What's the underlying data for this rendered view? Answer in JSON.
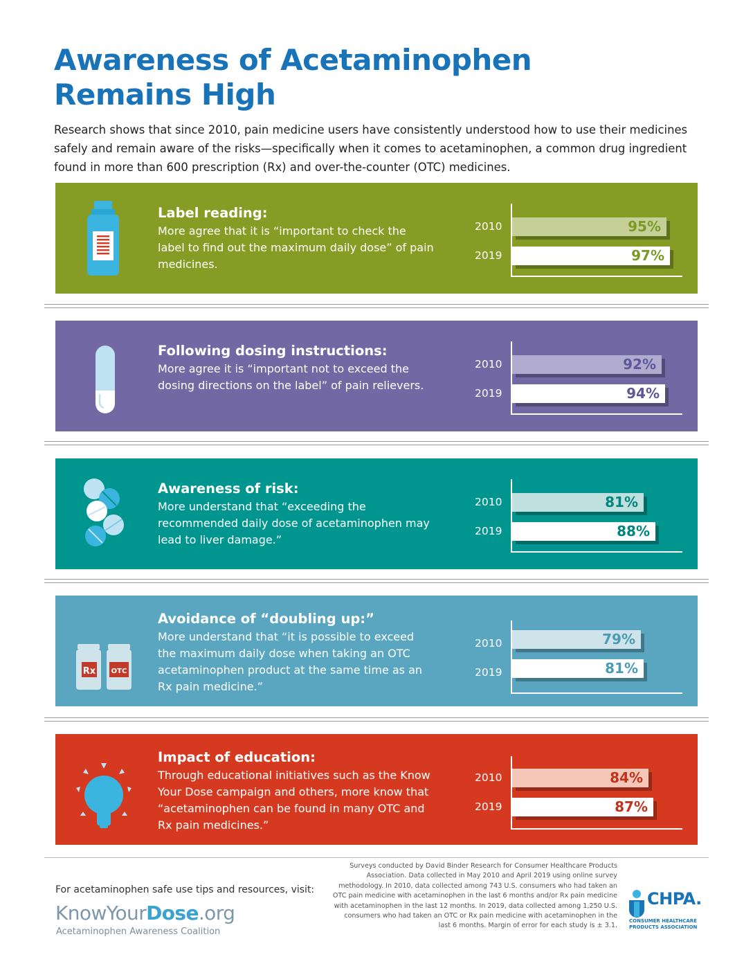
{
  "title_line1": "Awareness of Acetaminophen",
  "title_line2": "Remains High",
  "intro": "Research shows that since 2010, pain medicine users have consistently understood how to use their medicines safely and remain aware of the risks—specifically when it comes to acetaminophen, a common drug ingredient found in more than 600 prescription (Rx) and over-the-counter (OTC) medicines.",
  "colors": {
    "title": "#1873b8",
    "panel_label": "#879c25",
    "panel_dosing": "#7269a4",
    "panel_risk": "#00968f",
    "panel_doubling": "#5aa6c0",
    "panel_education": "#d53a21"
  },
  "panels": [
    {
      "icon": "medicine-bottle-icon",
      "title": "Label reading:",
      "desc": "More agree that it is “important to check the label to find out the maximum daily dose” of pain medicines.",
      "bg": "#879c25",
      "light": "#c6cf98",
      "val_color": "#7a9a26"
    },
    {
      "icon": "capsule-icon",
      "title": "Following dosing instructions:",
      "desc": "More agree it is “important not to exceed the dosing directions on the label” of pain relievers.",
      "bg": "#7269a4",
      "light": "#b1abd0",
      "val_color": "#5e5799"
    },
    {
      "icon": "tablets-icon",
      "title": "Awareness of risk:",
      "desc": "More understand that “exceeding the recommended daily dose of acetaminophen may lead to liver damage.”",
      "bg": "#00968f",
      "light": "#bfe0de",
      "val_color": "#00857f"
    },
    {
      "icon": "rx-otc-bottles-icon",
      "title": "Avoidance of “doubling up:”",
      "desc": "More understand that “it is possible to exceed the maximum daily dose when taking an OTC acetaminophen product at the same time as an Rx pain medicine.”",
      "bg": "#5aa6c0",
      "light": "#cfe3ea",
      "val_color": "#4a9bb5",
      "rx_label": "Rx",
      "otc_label": "OTC"
    },
    {
      "icon": "light-bulb-icon",
      "title": "Impact of education:",
      "desc": "Through educational initiatives such as the Know Your Dose campaign and others, more know that “acetaminophen can be found in many OTC and Rx pain medicines.”",
      "bg": "#d53a21",
      "light": "#f4c7b8",
      "val_color": "#c0331d"
    }
  ],
  "chart_data": [
    {
      "type": "bar",
      "categories": [
        "2010",
        "2019"
      ],
      "values": [
        95,
        97
      ],
      "value_labels": [
        "95%",
        "97%"
      ],
      "ylim": [
        0,
        100
      ]
    },
    {
      "type": "bar",
      "categories": [
        "2010",
        "2019"
      ],
      "values": [
        92,
        94
      ],
      "value_labels": [
        "92%",
        "94%"
      ],
      "ylim": [
        0,
        100
      ]
    },
    {
      "type": "bar",
      "categories": [
        "2010",
        "2019"
      ],
      "values": [
        81,
        88
      ],
      "value_labels": [
        "81%",
        "88%"
      ],
      "ylim": [
        0,
        100
      ]
    },
    {
      "type": "bar",
      "categories": [
        "2010",
        "2019"
      ],
      "values": [
        79,
        81
      ],
      "value_labels": [
        "79%",
        "81%"
      ],
      "ylim": [
        0,
        100
      ]
    },
    {
      "type": "bar",
      "categories": [
        "2010",
        "2019"
      ],
      "values": [
        84,
        87
      ],
      "value_labels": [
        "84%",
        "87%"
      ],
      "ylim": [
        0,
        100
      ]
    }
  ],
  "footer": {
    "visit": "For acetaminophen safe use tips and resources, visit:",
    "logo_prefix": "KnowYour",
    "logo_bold": "Dose",
    "logo_suffix": ".org",
    "tagline": "Acetaminophen Awareness Coalition",
    "footnote": "Surveys conducted by David Binder Research for Consumer Healthcare Products Association. Data collected in May 2010 and April 2019 using online survey methodology. In 2010, data collected among 743 U.S. consumers who had taken an OTC pain medicine with acetaminophen in the last 6 months and/or Rx pain medicine with acetaminophen in the last 12 months. In 2019, data collected among 1,250 U.S. consumers who had taken an OTC or Rx pain medicine with acetaminophen in the last 6 months. Margin of error for each study is ± 3.1.",
    "chpa_name": "CHPA.",
    "chpa_tagline": "CONSUMER HEALTHCARE PRODUCTS ASSOCIATION"
  }
}
